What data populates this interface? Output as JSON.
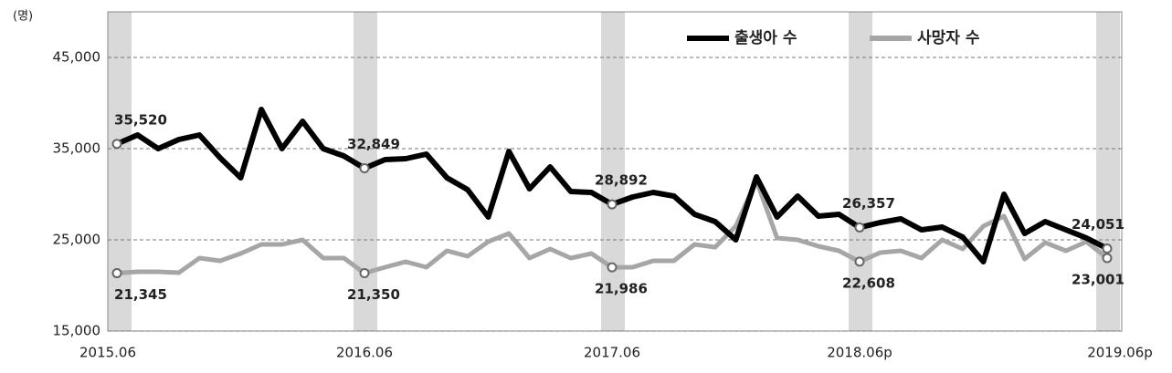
{
  "chart_data": {
    "type": "line",
    "unit_label": "(명)",
    "categories": [
      "2015.06",
      null,
      null,
      null,
      null,
      null,
      null,
      null,
      null,
      null,
      null,
      null,
      "2016.06",
      null,
      null,
      null,
      null,
      null,
      null,
      null,
      null,
      null,
      null,
      null,
      "2017.06",
      null,
      null,
      null,
      null,
      null,
      null,
      null,
      null,
      null,
      null,
      null,
      "2018.06p",
      null,
      null,
      null,
      null,
      null,
      null,
      null,
      null,
      null,
      null,
      null,
      "2019.06p"
    ],
    "series": [
      {
        "name": "출생아 수",
        "color": "#000000",
        "values": [
          35520,
          36500,
          35000,
          36000,
          36500,
          34000,
          31800,
          39300,
          35000,
          38000,
          35000,
          34200,
          32849,
          33800,
          33900,
          34400,
          31800,
          30500,
          27500,
          34700,
          30600,
          33000,
          30300,
          30200,
          28892,
          29700,
          30200,
          29800,
          27800,
          27000,
          25000,
          31900,
          27500,
          29800,
          27600,
          27800,
          26357,
          26900,
          27300,
          26100,
          26400,
          25300,
          22600,
          30000,
          25700,
          27000,
          26100,
          25200,
          24051
        ],
        "value_labels": [
          "35,520",
          null,
          null,
          null,
          null,
          null,
          null,
          null,
          null,
          null,
          null,
          null,
          "32,849",
          null,
          null,
          null,
          null,
          null,
          null,
          null,
          null,
          null,
          null,
          null,
          "28,892",
          null,
          null,
          null,
          null,
          null,
          null,
          null,
          null,
          null,
          null,
          null,
          "26,357",
          null,
          null,
          null,
          null,
          null,
          null,
          null,
          null,
          null,
          null,
          null,
          "24,051"
        ]
      },
      {
        "name": "사망자 수",
        "color": "#a6a6a6",
        "values": [
          21345,
          21500,
          21500,
          21400,
          23000,
          22700,
          23500,
          24500,
          24500,
          25000,
          23000,
          23000,
          21350,
          22000,
          22600,
          22000,
          23800,
          23200,
          24800,
          25700,
          23000,
          24000,
          23000,
          23500,
          21986,
          22000,
          22700,
          22700,
          24500,
          24200,
          26500,
          31500,
          25200,
          25000,
          24300,
          23800,
          22608,
          23600,
          23800,
          23000,
          25000,
          24000,
          26500,
          27600,
          22900,
          24700,
          23800,
          24800,
          23001
        ],
        "value_labels": [
          "21,345",
          null,
          null,
          null,
          null,
          null,
          null,
          null,
          null,
          null,
          null,
          null,
          "21,350",
          null,
          null,
          null,
          null,
          null,
          null,
          null,
          null,
          null,
          null,
          null,
          "21,986",
          null,
          null,
          null,
          null,
          null,
          null,
          null,
          null,
          null,
          null,
          null,
          "22,608",
          null,
          null,
          null,
          null,
          null,
          null,
          null,
          null,
          null,
          null,
          null,
          "23,001"
        ]
      }
    ],
    "ylim": [
      15000,
      50000
    ],
    "yticks": [
      {
        "value": 15000,
        "label": "15,000"
      },
      {
        "value": 25000,
        "label": "25,000"
      },
      {
        "value": 35000,
        "label": "35,000"
      },
      {
        "value": 45000,
        "label": "45,000"
      }
    ],
    "grid": true,
    "legend": "top-right"
  }
}
